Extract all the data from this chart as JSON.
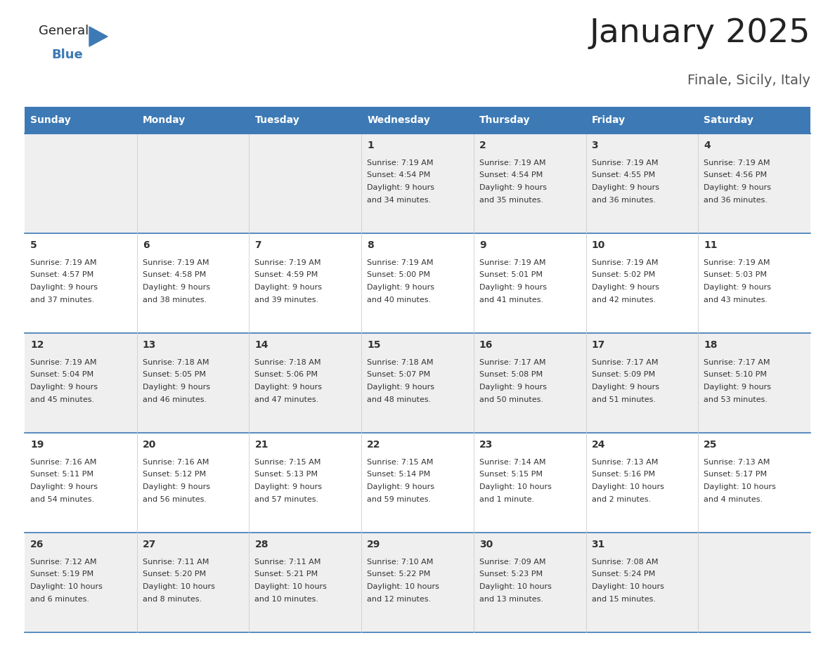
{
  "title": "January 2025",
  "subtitle": "Finale, Sicily, Italy",
  "days_of_week": [
    "Sunday",
    "Monday",
    "Tuesday",
    "Wednesday",
    "Thursday",
    "Friday",
    "Saturday"
  ],
  "header_bg": "#3d7ab5",
  "header_text": "#ffffff",
  "row_bg_odd": "#efefef",
  "row_bg_even": "#ffffff",
  "border_color": "#3d7ab5",
  "text_color": "#333333",
  "title_color": "#222222",
  "subtitle_color": "#555555",
  "day_number_color": "#333333",
  "calendar_data": [
    [
      {
        "day": "",
        "sunrise": "",
        "sunset": "",
        "daylight": ""
      },
      {
        "day": "",
        "sunrise": "",
        "sunset": "",
        "daylight": ""
      },
      {
        "day": "",
        "sunrise": "",
        "sunset": "",
        "daylight": ""
      },
      {
        "day": "1",
        "sunrise": "7:19 AM",
        "sunset": "4:54 PM",
        "daylight": "9 hours and 34 minutes."
      },
      {
        "day": "2",
        "sunrise": "7:19 AM",
        "sunset": "4:54 PM",
        "daylight": "9 hours and 35 minutes."
      },
      {
        "day": "3",
        "sunrise": "7:19 AM",
        "sunset": "4:55 PM",
        "daylight": "9 hours and 36 minutes."
      },
      {
        "day": "4",
        "sunrise": "7:19 AM",
        "sunset": "4:56 PM",
        "daylight": "9 hours and 36 minutes."
      }
    ],
    [
      {
        "day": "5",
        "sunrise": "7:19 AM",
        "sunset": "4:57 PM",
        "daylight": "9 hours and 37 minutes."
      },
      {
        "day": "6",
        "sunrise": "7:19 AM",
        "sunset": "4:58 PM",
        "daylight": "9 hours and 38 minutes."
      },
      {
        "day": "7",
        "sunrise": "7:19 AM",
        "sunset": "4:59 PM",
        "daylight": "9 hours and 39 minutes."
      },
      {
        "day": "8",
        "sunrise": "7:19 AM",
        "sunset": "5:00 PM",
        "daylight": "9 hours and 40 minutes."
      },
      {
        "day": "9",
        "sunrise": "7:19 AM",
        "sunset": "5:01 PM",
        "daylight": "9 hours and 41 minutes."
      },
      {
        "day": "10",
        "sunrise": "7:19 AM",
        "sunset": "5:02 PM",
        "daylight": "9 hours and 42 minutes."
      },
      {
        "day": "11",
        "sunrise": "7:19 AM",
        "sunset": "5:03 PM",
        "daylight": "9 hours and 43 minutes."
      }
    ],
    [
      {
        "day": "12",
        "sunrise": "7:19 AM",
        "sunset": "5:04 PM",
        "daylight": "9 hours and 45 minutes."
      },
      {
        "day": "13",
        "sunrise": "7:18 AM",
        "sunset": "5:05 PM",
        "daylight": "9 hours and 46 minutes."
      },
      {
        "day": "14",
        "sunrise": "7:18 AM",
        "sunset": "5:06 PM",
        "daylight": "9 hours and 47 minutes."
      },
      {
        "day": "15",
        "sunrise": "7:18 AM",
        "sunset": "5:07 PM",
        "daylight": "9 hours and 48 minutes."
      },
      {
        "day": "16",
        "sunrise": "7:17 AM",
        "sunset": "5:08 PM",
        "daylight": "9 hours and 50 minutes."
      },
      {
        "day": "17",
        "sunrise": "7:17 AM",
        "sunset": "5:09 PM",
        "daylight": "9 hours and 51 minutes."
      },
      {
        "day": "18",
        "sunrise": "7:17 AM",
        "sunset": "5:10 PM",
        "daylight": "9 hours and 53 minutes."
      }
    ],
    [
      {
        "day": "19",
        "sunrise": "7:16 AM",
        "sunset": "5:11 PM",
        "daylight": "9 hours and 54 minutes."
      },
      {
        "day": "20",
        "sunrise": "7:16 AM",
        "sunset": "5:12 PM",
        "daylight": "9 hours and 56 minutes."
      },
      {
        "day": "21",
        "sunrise": "7:15 AM",
        "sunset": "5:13 PM",
        "daylight": "9 hours and 57 minutes."
      },
      {
        "day": "22",
        "sunrise": "7:15 AM",
        "sunset": "5:14 PM",
        "daylight": "9 hours and 59 minutes."
      },
      {
        "day": "23",
        "sunrise": "7:14 AM",
        "sunset": "5:15 PM",
        "daylight": "10 hours and 1 minute."
      },
      {
        "day": "24",
        "sunrise": "7:13 AM",
        "sunset": "5:16 PM",
        "daylight": "10 hours and 2 minutes."
      },
      {
        "day": "25",
        "sunrise": "7:13 AM",
        "sunset": "5:17 PM",
        "daylight": "10 hours and 4 minutes."
      }
    ],
    [
      {
        "day": "26",
        "sunrise": "7:12 AM",
        "sunset": "5:19 PM",
        "daylight": "10 hours and 6 minutes."
      },
      {
        "day": "27",
        "sunrise": "7:11 AM",
        "sunset": "5:20 PM",
        "daylight": "10 hours and 8 minutes."
      },
      {
        "day": "28",
        "sunrise": "7:11 AM",
        "sunset": "5:21 PM",
        "daylight": "10 hours and 10 minutes."
      },
      {
        "day": "29",
        "sunrise": "7:10 AM",
        "sunset": "5:22 PM",
        "daylight": "10 hours and 12 minutes."
      },
      {
        "day": "30",
        "sunrise": "7:09 AM",
        "sunset": "5:23 PM",
        "daylight": "10 hours and 13 minutes."
      },
      {
        "day": "31",
        "sunrise": "7:08 AM",
        "sunset": "5:24 PM",
        "daylight": "10 hours and 15 minutes."
      },
      {
        "day": "",
        "sunrise": "",
        "sunset": "",
        "daylight": ""
      }
    ]
  ],
  "logo_general_color": "#222222",
  "logo_blue_color": "#3d7ab5",
  "logo_triangle_color": "#3d7ab5"
}
